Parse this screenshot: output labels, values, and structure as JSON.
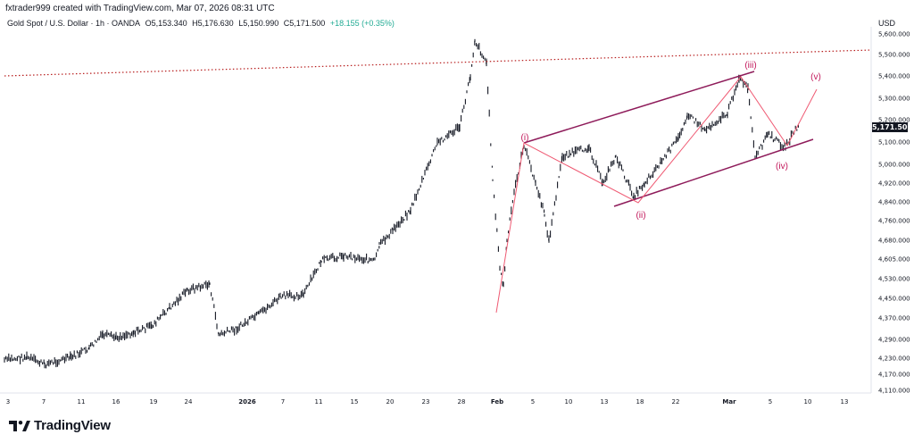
{
  "header": {
    "credit": "fxtrader999 created with TradingView.com, Mar 07, 2026 08:31 UTC",
    "symbol": "Gold Spot / U.S. Dollar · 1h · OANDA",
    "open": "O5,153.340",
    "high": "H5,176.630",
    "low": "L5,150.990",
    "close": "C5,171.500",
    "change": "+18.155 (+0.35%)"
  },
  "axis": {
    "currency": "USD",
    "last_price": "5,171.500",
    "y_ticks": [
      "5,600.000",
      "5,500.000",
      "5,400.000",
      "5,300.000",
      "5,200.000",
      "5,100.000",
      "5,000.000",
      "4,920.000",
      "4,840.000",
      "4,760.000",
      "4,680.000",
      "4,605.000",
      "4,530.000",
      "4,450.000",
      "4,370.000",
      "4,290.000",
      "4,230.000",
      "4,170.000",
      "4,110.000"
    ],
    "x_ticks": [
      "3",
      "7",
      "11",
      "16",
      "19",
      "24",
      "2026",
      "7",
      "11",
      "15",
      "20",
      "23",
      "28",
      "Feb",
      "5",
      "10",
      "13",
      "18",
      "22",
      "Mar",
      "5",
      "10",
      "13"
    ]
  },
  "annotations": {
    "wave_labels": [
      "(i)",
      "(ii)",
      "(iii)",
      "(iv)",
      "(v)"
    ]
  },
  "colors": {
    "candle": "#131722",
    "annotation": "#c2185b",
    "channel": "#8e1b5a",
    "resistance": "#b71c1c",
    "grid": "#e0e3eb"
  },
  "brand": {
    "name": "TradingView",
    "logo": "tradingview-logo-icon"
  }
}
